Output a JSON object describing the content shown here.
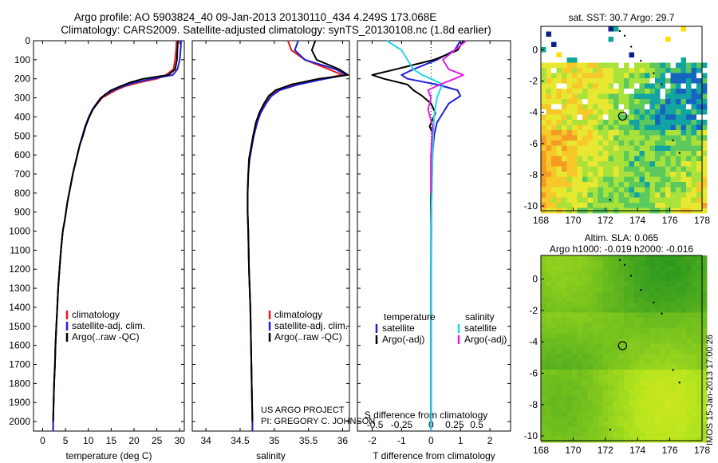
{
  "header": {
    "title_line1": "Argo profile: AO 5903824_40 09-Jan-2013 20130110_434 4.249S 173.068E",
    "title_line2": "Climatology: CARS2009. Satellite-adjusted climatology: synTS_20130108.nc (1.8d earlier)"
  },
  "depth_ticks": [
    "0",
    "100",
    "200",
    "300",
    "400",
    "500",
    "600",
    "700",
    "800",
    "900",
    "1000",
    "1100",
    "1200",
    "1300",
    "1400",
    "1500",
    "1600",
    "1700",
    "1800",
    "1900",
    "2000"
  ],
  "colors": {
    "climatology": "#e41a1c",
    "satellite": "#1f1fd6",
    "argo": "#000000",
    "sal_sat": "#22d8e8",
    "sal_argo": "#e020e0"
  },
  "project": {
    "line1": "US ARGO PROJECT",
    "line2": "PI: GREGORY C. JOHNSON"
  },
  "timestamp": "IMOS 15-Jan-2013 17:00:26",
  "chart_data": [
    {
      "type": "line",
      "id": "temperature",
      "xlabel": "temperature (deg C)",
      "ylabel": "depth",
      "xlim": [
        -2,
        31
      ],
      "ylim": [
        2050,
        0
      ],
      "xticks": [
        0,
        5,
        10,
        15,
        20,
        25,
        30
      ],
      "xtick_labels": [
        "0",
        "5",
        "10",
        "15",
        "20",
        "25",
        "30"
      ],
      "legend": [
        "climatology",
        "satellite-adj. clim.",
        "Argo(..raw -QC)"
      ],
      "legend_position": "lower-center",
      "series": [
        {
          "name": "climatology",
          "color_key": "climatology",
          "x": [
            29.3,
            29.2,
            29.0,
            28.6,
            27,
            25,
            21,
            18,
            16,
            14.5,
            13,
            12,
            11,
            10.2,
            9.4,
            8.7,
            8.1,
            7.6,
            7.1,
            6.6,
            6.2,
            5.8,
            5.4,
            5.1,
            4.8,
            4.4,
            4.0,
            3.7,
            3.4,
            3.2,
            3.0,
            2.8,
            2.7,
            2.5,
            2.4,
            2.3,
            2.3
          ],
          "y": [
            0,
            50,
            100,
            150,
            180,
            200,
            220,
            240,
            260,
            280,
            300,
            330,
            360,
            400,
            450,
            500,
            550,
            600,
            650,
            700,
            750,
            800,
            850,
            900,
            950,
            1000,
            1100,
            1200,
            1300,
            1400,
            1500,
            1600,
            1700,
            1800,
            1900,
            2000,
            2050
          ]
        },
        {
          "name": "satellite-adj. clim.",
          "color_key": "satellite",
          "x": [
            30.3,
            30.2,
            30.0,
            29.5,
            28.5,
            24,
            20,
            17.5,
            15.5,
            14.0,
            12.7,
            11.8,
            10.9,
            10.1,
            9.3,
            8.7,
            8.1,
            7.6,
            7.1,
            6.6,
            6.2,
            5.8,
            5.4,
            5.1,
            4.8,
            4.4,
            4.0,
            3.7,
            3.4,
            3.2,
            3.0,
            2.8,
            2.7,
            2.5,
            2.4,
            2.3,
            2.3
          ],
          "y": [
            0,
            50,
            100,
            150,
            180,
            200,
            220,
            240,
            260,
            280,
            300,
            330,
            360,
            400,
            450,
            500,
            550,
            600,
            650,
            700,
            750,
            800,
            850,
            900,
            950,
            1000,
            1100,
            1200,
            1300,
            1400,
            1500,
            1600,
            1700,
            1800,
            1900,
            2000,
            2050
          ]
        },
        {
          "name": "Argo(..raw -QC)",
          "color_key": "argo",
          "x": [
            29.6,
            29.5,
            29.4,
            29.0,
            27.5,
            22,
            19,
            17,
            15,
            13.8,
            12.8,
            11.9,
            11.0,
            10.2,
            9.4,
            8.8,
            8.1,
            7.6,
            7.1,
            6.6,
            6.2,
            5.8,
            5.4,
            5.1,
            4.8,
            4.4,
            4.0,
            3.7,
            3.4,
            3.2,
            3.0,
            2.8,
            2.7,
            2.5,
            2.4,
            2.3
          ],
          "y": [
            0,
            50,
            100,
            150,
            180,
            200,
            220,
            240,
            260,
            280,
            300,
            330,
            360,
            400,
            450,
            500,
            550,
            600,
            650,
            700,
            750,
            800,
            850,
            900,
            950,
            1000,
            1100,
            1200,
            1300,
            1400,
            1500,
            1600,
            1700,
            1800,
            1900,
            2000
          ]
        }
      ]
    },
    {
      "type": "line",
      "id": "salinity",
      "xlabel": "salinity",
      "ylabel": "depth",
      "xlim": [
        33.8,
        36.1
      ],
      "ylim": [
        2050,
        0
      ],
      "xticks": [
        34,
        34.5,
        35,
        35.5,
        36
      ],
      "xtick_labels": [
        "34",
        "34.5",
        "35",
        "35.5",
        "36"
      ],
      "legend": [
        "climatology",
        "satellite-adj. clim.",
        "Argo(..raw -QC)"
      ],
      "legend_position": "lower-right",
      "series": [
        {
          "name": "climatology",
          "color_key": "climatology",
          "x": [
            35.2,
            35.25,
            35.45,
            35.8,
            36.0,
            35.7,
            35.3,
            35.05,
            34.95,
            34.87,
            34.8,
            34.75,
            34.7,
            34.67,
            34.64,
            34.62,
            34.61,
            34.61,
            34.62,
            34.63,
            34.65,
            34.66,
            34.67,
            34.68,
            34.68
          ],
          "y": [
            0,
            50,
            100,
            150,
            180,
            200,
            230,
            260,
            290,
            330,
            380,
            430,
            500,
            560,
            620,
            700,
            800,
            900,
            1000,
            1200,
            1400,
            1600,
            1800,
            2000,
            2050
          ]
        },
        {
          "name": "satellite-adj. clim.",
          "color_key": "satellite",
          "x": [
            35.35,
            35.3,
            35.45,
            35.9,
            36.05,
            35.75,
            35.35,
            35.08,
            34.96,
            34.88,
            34.8,
            34.75,
            34.7,
            34.67,
            34.64,
            34.62,
            34.61,
            34.61,
            34.62,
            34.63,
            34.65,
            34.66,
            34.67,
            34.68,
            34.68
          ],
          "y": [
            0,
            50,
            100,
            150,
            180,
            200,
            230,
            260,
            290,
            330,
            380,
            430,
            500,
            560,
            620,
            700,
            800,
            900,
            1000,
            1200,
            1400,
            1600,
            1800,
            2000,
            2050
          ]
        },
        {
          "name": "Argo(..raw -QC)",
          "color_key": "argo",
          "x": [
            35.6,
            35.55,
            35.62,
            35.95,
            36.08,
            35.65,
            35.25,
            35.02,
            34.92,
            34.85,
            34.78,
            34.73,
            34.69,
            34.66,
            34.63,
            34.62,
            34.61,
            34.61,
            34.62,
            34.63,
            34.65,
            34.66,
            34.67,
            34.68
          ],
          "y": [
            0,
            50,
            100,
            150,
            180,
            200,
            230,
            260,
            290,
            330,
            380,
            430,
            500,
            560,
            620,
            700,
            800,
            900,
            1000,
            1200,
            1400,
            1600,
            1800,
            2000
          ]
        }
      ]
    },
    {
      "type": "line",
      "id": "difference",
      "xlabel": "T difference from climatology",
      "x2label": "S difference from climatology",
      "ylabel": "depth",
      "xlim": [
        -2.5,
        2.7
      ],
      "ylim": [
        2050,
        0
      ],
      "xticks": [
        -2,
        -1,
        0,
        1,
        2
      ],
      "xtick_labels": [
        "-2",
        "-1",
        "0",
        "1",
        "2"
      ],
      "x2ticks": [
        -1.9,
        -1.0,
        0,
        0.8,
        1.55
      ],
      "x2tick_labels": [
        "-0.5",
        "-0.25",
        "0",
        "0.25",
        "0.5"
      ],
      "legend_left": {
        "title": "temperature",
        "items": [
          "satellite",
          "Argo(-adj)"
        ]
      },
      "legend_right": {
        "title": "salinity",
        "items": [
          "satellite",
          "Argo(-adj)"
        ]
      },
      "series": [
        {
          "name": "T satellite",
          "color_key": "satellite",
          "x": [
            1.0,
            0.8,
            0.2,
            -0.6,
            -1.0,
            -0.8,
            0.2,
            0.9,
            1.0,
            0.6,
            0.4,
            0.2,
            0.1,
            0.05,
            0.02,
            0.0,
            0.0
          ],
          "y": [
            0,
            50,
            100,
            150,
            180,
            200,
            230,
            260,
            290,
            330,
            380,
            430,
            500,
            600,
            800,
            1200,
            2050
          ]
        },
        {
          "name": "T Argo(-adj)",
          "color_key": "argo",
          "x": [
            1.1,
            0.9,
            0.1,
            -1.2,
            -2.0,
            -1.6,
            -0.8,
            -0.6,
            -0.3,
            0.0,
            0.15,
            -0.05,
            0.1,
            0.0,
            0.0,
            0.0,
            0.0
          ],
          "y": [
            0,
            50,
            100,
            150,
            180,
            200,
            230,
            260,
            290,
            330,
            380,
            450,
            500,
            600,
            800,
            1200,
            2000
          ]
        },
        {
          "name": "S satellite",
          "color_key": "sal_sat",
          "x": [
            -1.5,
            -1.0,
            -0.8,
            -0.6,
            -0.3,
            0.0,
            0.4,
            0.3,
            0.2,
            0.1,
            0.05,
            0.0,
            0.0
          ],
          "y": [
            0,
            50,
            100,
            150,
            180,
            200,
            230,
            260,
            300,
            400,
            600,
            1000,
            2050
          ]
        },
        {
          "name": "S Argo(-adj)",
          "color_key": "sal_argo",
          "x": [
            1.2,
            0.8,
            0.4,
            0.6,
            1.1,
            0.8,
            0.3,
            -0.1,
            0.0,
            -0.1,
            0.05,
            0.0,
            0.0
          ],
          "y": [
            0,
            50,
            100,
            150,
            180,
            200,
            230,
            260,
            300,
            360,
            450,
            600,
            800
          ]
        }
      ]
    },
    {
      "type": "heatmap",
      "id": "sst_map",
      "title": "sat. SST: 30.7 Argo: 29.7",
      "xlim": [
        168,
        178
      ],
      "ylim": [
        -10.3,
        1.5
      ],
      "xticks": [
        168,
        170,
        172,
        174,
        176,
        178
      ],
      "xtick_labels": [
        "168",
        "170",
        "172",
        "174",
        "176",
        "178"
      ],
      "yticks": [
        0,
        -2,
        -4,
        -6,
        -8,
        -10
      ],
      "ytick_labels": [
        "0",
        "-2",
        "-4",
        "-6",
        "-8",
        "-10"
      ],
      "float_position": [
        173.068,
        -4.249
      ]
    },
    {
      "type": "heatmap",
      "id": "sla_map",
      "title": "Altim. SLA: 0.065",
      "subtitle": "Argo h1000: -0.019 h2000: -0.016",
      "xlim": [
        168,
        178
      ],
      "ylim": [
        -10.3,
        1.5
      ],
      "xticks": [
        168,
        170,
        172,
        174,
        176,
        178
      ],
      "xtick_labels": [
        "168",
        "170",
        "172",
        "174",
        "176",
        "178"
      ],
      "yticks": [
        0,
        -2,
        -4,
        -6,
        -8,
        -10
      ],
      "ytick_labels": [
        "0",
        "-2",
        "-4",
        "-6",
        "-8",
        "-10"
      ],
      "float_position": [
        173.068,
        -4.249
      ]
    }
  ]
}
